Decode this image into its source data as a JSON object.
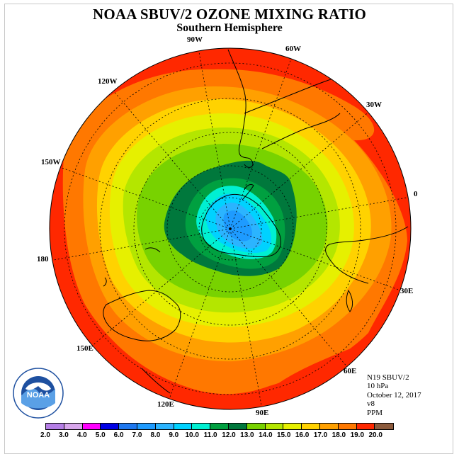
{
  "title": "NOAA SBUV/2 OZONE MIXING RATIO",
  "subtitle": "Southern Hemisphere",
  "longitude_labels": [
    "90W",
    "60W",
    "30W",
    "0",
    "30E",
    "60E",
    "90E",
    "120E",
    "150E",
    "180",
    "150W",
    "120W"
  ],
  "info": {
    "instrument": "N19 SBUV/2",
    "level": "10 hPa",
    "date": "October 12, 2017",
    "version": "v8",
    "units": "PPM"
  },
  "logo": {
    "text": "NOAA",
    "icon": "noaa-logo"
  },
  "colorbar": {
    "ticks": [
      "2.0",
      "3.0",
      "4.0",
      "5.0",
      "6.0",
      "7.0",
      "8.0",
      "9.0",
      "10.0",
      "11.0",
      "12.0",
      "13.0",
      "14.0",
      "15.0",
      "16.0",
      "17.0",
      "18.0",
      "19.0",
      "20.0"
    ],
    "colors": [
      "#b57ee6",
      "#d8a6ec",
      "#ff00ff",
      "#0000e6",
      "#1e78f0",
      "#1e9bff",
      "#2bb4ff",
      "#00d2ff",
      "#00f0d2",
      "#00a040",
      "#00783c",
      "#78d200",
      "#b4e600",
      "#e6f000",
      "#ffd200",
      "#ffa000",
      "#ff7800",
      "#ff2800",
      "#8c5a3c"
    ]
  },
  "map": {
    "projection": "south-polar-stereographic",
    "description_levels_ppm": [
      19,
      18,
      17,
      16,
      15,
      14,
      13,
      12,
      11,
      10,
      9,
      8,
      7
    ]
  }
}
